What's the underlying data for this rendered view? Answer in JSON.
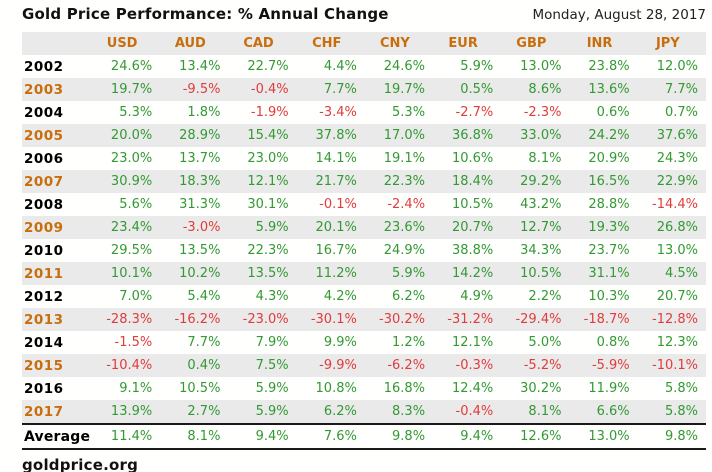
{
  "header": {
    "title": "Gold Price Performance: % Annual Change",
    "date": "Monday, August 28, 2017"
  },
  "footer": {
    "source": "goldprice.org"
  },
  "colors": {
    "positive_green": "#339933",
    "negative_red": "#e03c3c",
    "header_orange": "#c86e0d",
    "band_gray": "#eaeaea"
  },
  "chart_data": {
    "type": "table",
    "title": "Gold Price Performance: % Annual Change",
    "columns": [
      "USD",
      "AUD",
      "CAD",
      "CHF",
      "CNY",
      "EUR",
      "GBP",
      "INR",
      "JPY"
    ],
    "rows": [
      {
        "label": "2002",
        "values": [
          "24.6%",
          "13.4%",
          "22.7%",
          "4.4%",
          "24.6%",
          "5.9%",
          "13.0%",
          "23.8%",
          "12.0%"
        ]
      },
      {
        "label": "2003",
        "values": [
          "19.7%",
          "-9.5%",
          "-0.4%",
          "7.7%",
          "19.7%",
          "0.5%",
          "8.6%",
          "13.6%",
          "7.7%"
        ]
      },
      {
        "label": "2004",
        "values": [
          "5.3%",
          "1.8%",
          "-1.9%",
          "-3.4%",
          "5.3%",
          "-2.7%",
          "-2.3%",
          "0.6%",
          "0.7%"
        ]
      },
      {
        "label": "2005",
        "values": [
          "20.0%",
          "28.9%",
          "15.4%",
          "37.8%",
          "17.0%",
          "36.8%",
          "33.0%",
          "24.2%",
          "37.6%"
        ]
      },
      {
        "label": "2006",
        "values": [
          "23.0%",
          "13.7%",
          "23.0%",
          "14.1%",
          "19.1%",
          "10.6%",
          "8.1%",
          "20.9%",
          "24.3%"
        ]
      },
      {
        "label": "2007",
        "values": [
          "30.9%",
          "18.3%",
          "12.1%",
          "21.7%",
          "22.3%",
          "18.4%",
          "29.2%",
          "16.5%",
          "22.9%"
        ]
      },
      {
        "label": "2008",
        "values": [
          "5.6%",
          "31.3%",
          "30.1%",
          "-0.1%",
          "-2.4%",
          "10.5%",
          "43.2%",
          "28.8%",
          "-14.4%"
        ]
      },
      {
        "label": "2009",
        "values": [
          "23.4%",
          "-3.0%",
          "5.9%",
          "20.1%",
          "23.6%",
          "20.7%",
          "12.7%",
          "19.3%",
          "26.8%"
        ]
      },
      {
        "label": "2010",
        "values": [
          "29.5%",
          "13.5%",
          "22.3%",
          "16.7%",
          "24.9%",
          "38.8%",
          "34.3%",
          "23.7%",
          "13.0%"
        ]
      },
      {
        "label": "2011",
        "values": [
          "10.1%",
          "10.2%",
          "13.5%",
          "11.2%",
          "5.9%",
          "14.2%",
          "10.5%",
          "31.1%",
          "4.5%"
        ]
      },
      {
        "label": "2012",
        "values": [
          "7.0%",
          "5.4%",
          "4.3%",
          "4.2%",
          "6.2%",
          "4.9%",
          "2.2%",
          "10.3%",
          "20.7%"
        ]
      },
      {
        "label": "2013",
        "values": [
          "-28.3%",
          "-16.2%",
          "-23.0%",
          "-30.1%",
          "-30.2%",
          "-31.2%",
          "-29.4%",
          "-18.7%",
          "-12.8%"
        ]
      },
      {
        "label": "2014",
        "values": [
          "-1.5%",
          "7.7%",
          "7.9%",
          "9.9%",
          "1.2%",
          "12.1%",
          "5.0%",
          "0.8%",
          "12.3%"
        ]
      },
      {
        "label": "2015",
        "values": [
          "-10.4%",
          "0.4%",
          "7.5%",
          "-9.9%",
          "-6.2%",
          "-0.3%",
          "-5.2%",
          "-5.9%",
          "-10.1%"
        ]
      },
      {
        "label": "2016",
        "values": [
          "9.1%",
          "10.5%",
          "5.9%",
          "10.8%",
          "16.8%",
          "12.4%",
          "30.2%",
          "11.9%",
          "5.8%"
        ]
      },
      {
        "label": "2017",
        "values": [
          "13.9%",
          "2.7%",
          "5.9%",
          "6.2%",
          "8.3%",
          "-0.4%",
          "8.1%",
          "6.6%",
          "5.8%"
        ]
      }
    ],
    "average": {
      "label": "Average",
      "values": [
        "11.4%",
        "8.1%",
        "9.4%",
        "7.6%",
        "9.8%",
        "9.4%",
        "12.6%",
        "13.0%",
        "9.8%"
      ]
    }
  }
}
